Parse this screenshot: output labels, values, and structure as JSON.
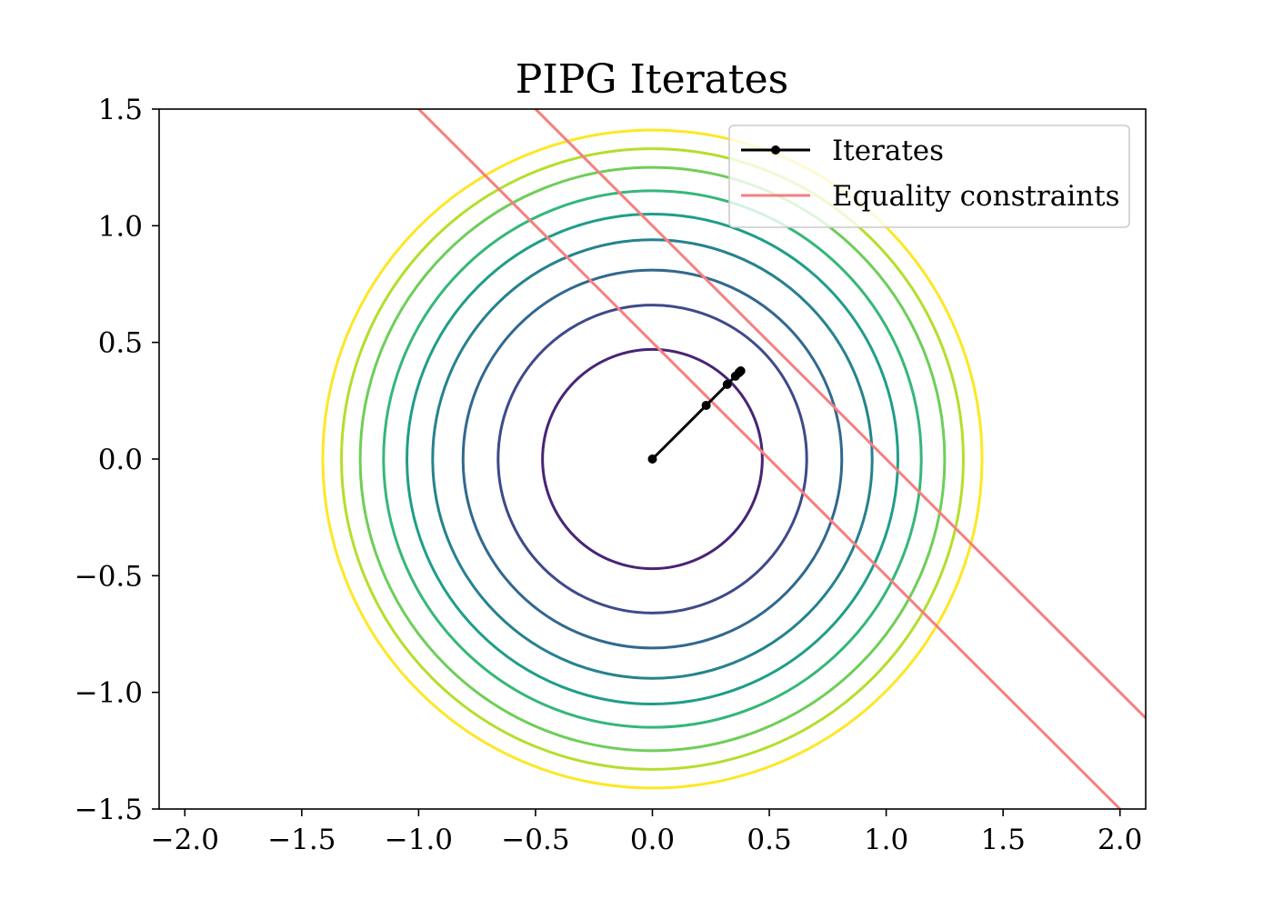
{
  "chart_data": {
    "type": "line",
    "title": "PIPG Iterates",
    "xlabel": "",
    "ylabel": "",
    "xlim": [
      -2.11,
      2.11
    ],
    "ylim": [
      -1.5,
      1.5
    ],
    "x_ticks": [
      -2.0,
      -1.5,
      -1.0,
      -0.5,
      0.0,
      0.5,
      1.0,
      1.5,
      2.0
    ],
    "x_tick_labels": [
      "−2.0",
      "−1.5",
      "−1.0",
      "−0.5",
      "0.0",
      "0.5",
      "1.0",
      "1.5",
      "2.0"
    ],
    "y_ticks": [
      -1.5,
      -1.0,
      -0.5,
      0.0,
      0.5,
      1.0,
      1.5
    ],
    "y_tick_labels": [
      "−1.5",
      "−1.0",
      "−0.5",
      "0.0",
      "0.5",
      "1.0",
      "1.5"
    ],
    "grid": false,
    "legend_position": "top-right",
    "contours": {
      "center": [
        0,
        0
      ],
      "radii": [
        0.47,
        0.66,
        0.81,
        0.94,
        1.05,
        1.15,
        1.25,
        1.33,
        1.41
      ],
      "colors": [
        "#482475",
        "#3e4a89",
        "#31688e",
        "#26828e",
        "#1f9e89",
        "#35b779",
        "#6ece58",
        "#b5de2b",
        "#fde725"
      ]
    },
    "series": [
      {
        "name": "Iterates",
        "color": "#000000",
        "marker": "circle",
        "points": [
          [
            0.0,
            0.0
          ],
          [
            0.23,
            0.23
          ],
          [
            0.32,
            0.32
          ],
          [
            0.355,
            0.355
          ],
          [
            0.37,
            0.37
          ],
          [
            0.375,
            0.375
          ],
          [
            0.378,
            0.378
          ]
        ]
      },
      {
        "name": "Equality constraints",
        "color": "#f77f7f",
        "lines": [
          {
            "slope": -1,
            "intercept": 0.5
          },
          {
            "slope": -1,
            "intercept": 1.0
          }
        ]
      }
    ]
  }
}
